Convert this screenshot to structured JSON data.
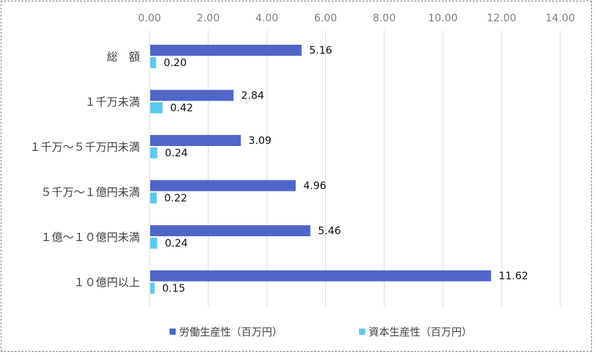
{
  "chart_data": {
    "type": "bar",
    "orientation": "horizontal",
    "categories": [
      "総　額",
      "１千万未満",
      "１千万～５千万円未満",
      "５千万～１億円未満",
      "１億～１０億円未満",
      "１０億円以上"
    ],
    "series": [
      {
        "name": "労働生産性（百万円）",
        "color": "#4F65C8",
        "values": [
          5.16,
          2.84,
          3.09,
          4.96,
          5.46,
          11.62
        ],
        "labels": [
          "5.16",
          "2.84",
          "3.09",
          "4.96",
          "5.46",
          "11.62"
        ]
      },
      {
        "name": "資本生産性（百万円）",
        "color": "#5BC8F0",
        "values": [
          0.2,
          0.42,
          0.24,
          0.22,
          0.24,
          0.15
        ],
        "labels": [
          "0.20",
          "0.42",
          "0.24",
          "0.22",
          "0.24",
          "0.15"
        ]
      }
    ],
    "xlim": [
      0,
      14
    ],
    "xticks": [
      "0.00",
      "2.00",
      "4.00",
      "6.00",
      "8.00",
      "10.00",
      "12.00",
      "14.00"
    ],
    "axis_position": "top",
    "grid": true,
    "legend": "bottom"
  }
}
